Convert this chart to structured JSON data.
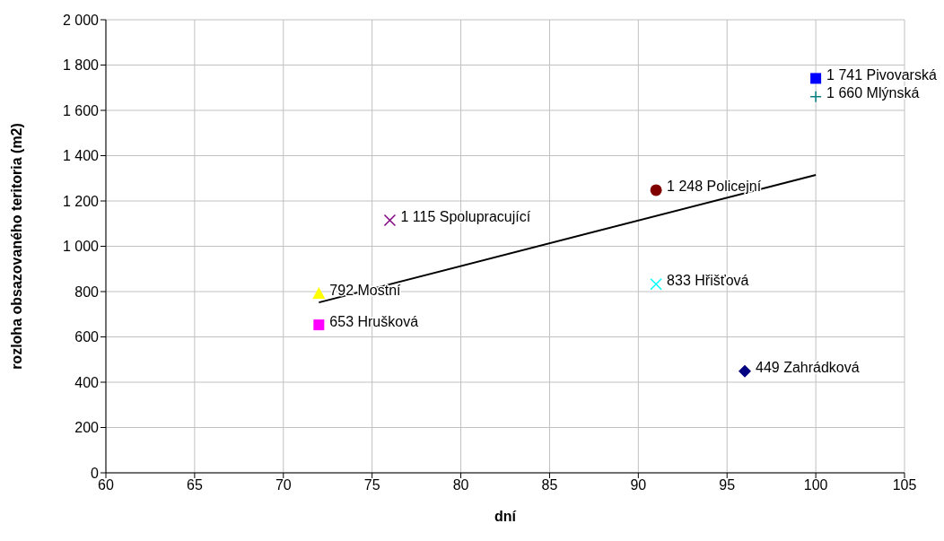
{
  "chart_data": {
    "type": "scatter",
    "xlabel": "dní",
    "ylabel": "rozloha obsazovaného teritoria (m2)",
    "xlim": [
      60,
      105
    ],
    "xticks": [
      60,
      65,
      70,
      75,
      80,
      85,
      90,
      95,
      100,
      105
    ],
    "ylim": [
      0,
      2000
    ],
    "yticks": [
      0,
      200,
      400,
      600,
      800,
      {
        "value": 1000,
        "label": "1 000"
      },
      {
        "value": 1200,
        "label": "1 200"
      },
      {
        "value": 1400,
        "label": "1 400"
      },
      {
        "value": 1600,
        "label": "1 600"
      },
      {
        "value": 1800,
        "label": "1 800"
      },
      {
        "value": 2000,
        "label": "2 000"
      }
    ],
    "grid": true,
    "legend": false,
    "series": [
      {
        "color": "#0000ff",
        "marker": "square",
        "x": [
          100
        ],
        "values": [
          1741
        ],
        "value_labels": [
          "1 741 Pivovarská"
        ]
      },
      {
        "color": "#008080",
        "marker": "plus",
        "x": [
          100
        ],
        "values": [
          1660
        ],
        "value_labels": [
          "1 660 Mlýnská"
        ]
      },
      {
        "color": "#800000",
        "marker": "circle",
        "x": [
          91
        ],
        "values": [
          1248
        ],
        "value_labels": [
          "1 248 Policejní"
        ]
      },
      {
        "color": "#800080",
        "marker": "cross",
        "x": [
          76
        ],
        "values": [
          1115
        ],
        "value_labels": [
          "1 115 Spolupracující"
        ]
      },
      {
        "color": "#00ffff",
        "marker": "cross",
        "x": [
          91
        ],
        "values": [
          833
        ],
        "value_labels": [
          "833 Hřišťová"
        ]
      },
      {
        "color": "#ffff00",
        "marker": "triangle",
        "x": [
          72
        ],
        "values": [
          792
        ],
        "value_labels": [
          "792 Mostní"
        ]
      },
      {
        "color": "#ff00ff",
        "marker": "square",
        "x": [
          72
        ],
        "values": [
          653
        ],
        "value_labels": [
          "653 Hrušková"
        ]
      },
      {
        "color": "#000080",
        "marker": "diamond",
        "x": [
          96
        ],
        "values": [
          449
        ],
        "value_labels": [
          "449 Zahrádková"
        ]
      },
      {
        "type": "line",
        "color": "#000000",
        "marker": "none",
        "x": [
          72,
          100
        ],
        "values": [
          752,
          1315
        ]
      }
    ]
  }
}
